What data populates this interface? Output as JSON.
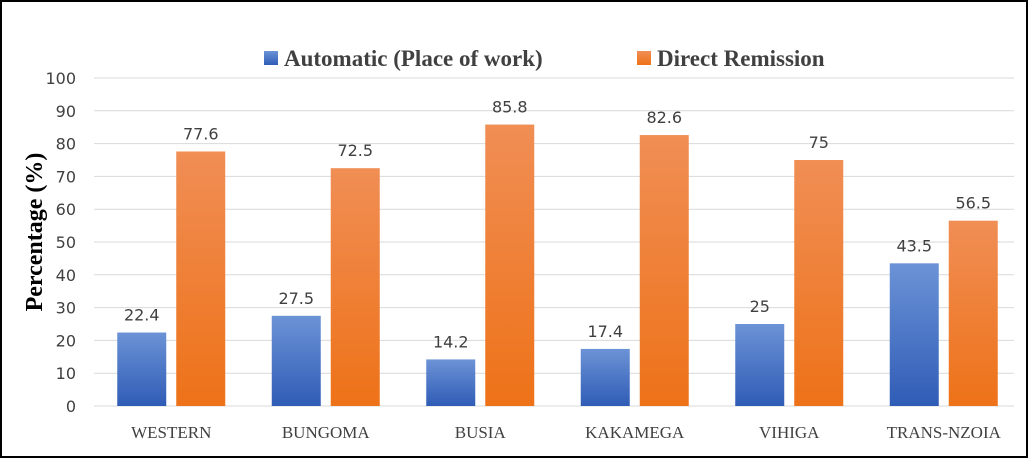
{
  "chart_data": {
    "type": "bar",
    "title": "",
    "xlabel": "",
    "ylabel": "Percentage (%)",
    "ylim": [
      0,
      100
    ],
    "yticks": [
      0,
      10,
      20,
      30,
      40,
      50,
      60,
      70,
      80,
      90,
      100
    ],
    "grid": true,
    "legend_position": "top",
    "categories": [
      "WESTERN",
      "BUNGOMA",
      "BUSIA",
      "KAKAMEGA",
      "VIHIGA",
      "TRANS-NZOIA"
    ],
    "series": [
      {
        "name": "Automatic (Place of work)",
        "values": [
          22.4,
          27.5,
          14.2,
          17.4,
          25,
          43.5
        ],
        "color": "#4472C4"
      },
      {
        "name": "Direct Remission",
        "values": [
          77.6,
          72.5,
          85.8,
          82.6,
          75,
          56.5
        ],
        "color": "#ED7D31"
      }
    ]
  }
}
